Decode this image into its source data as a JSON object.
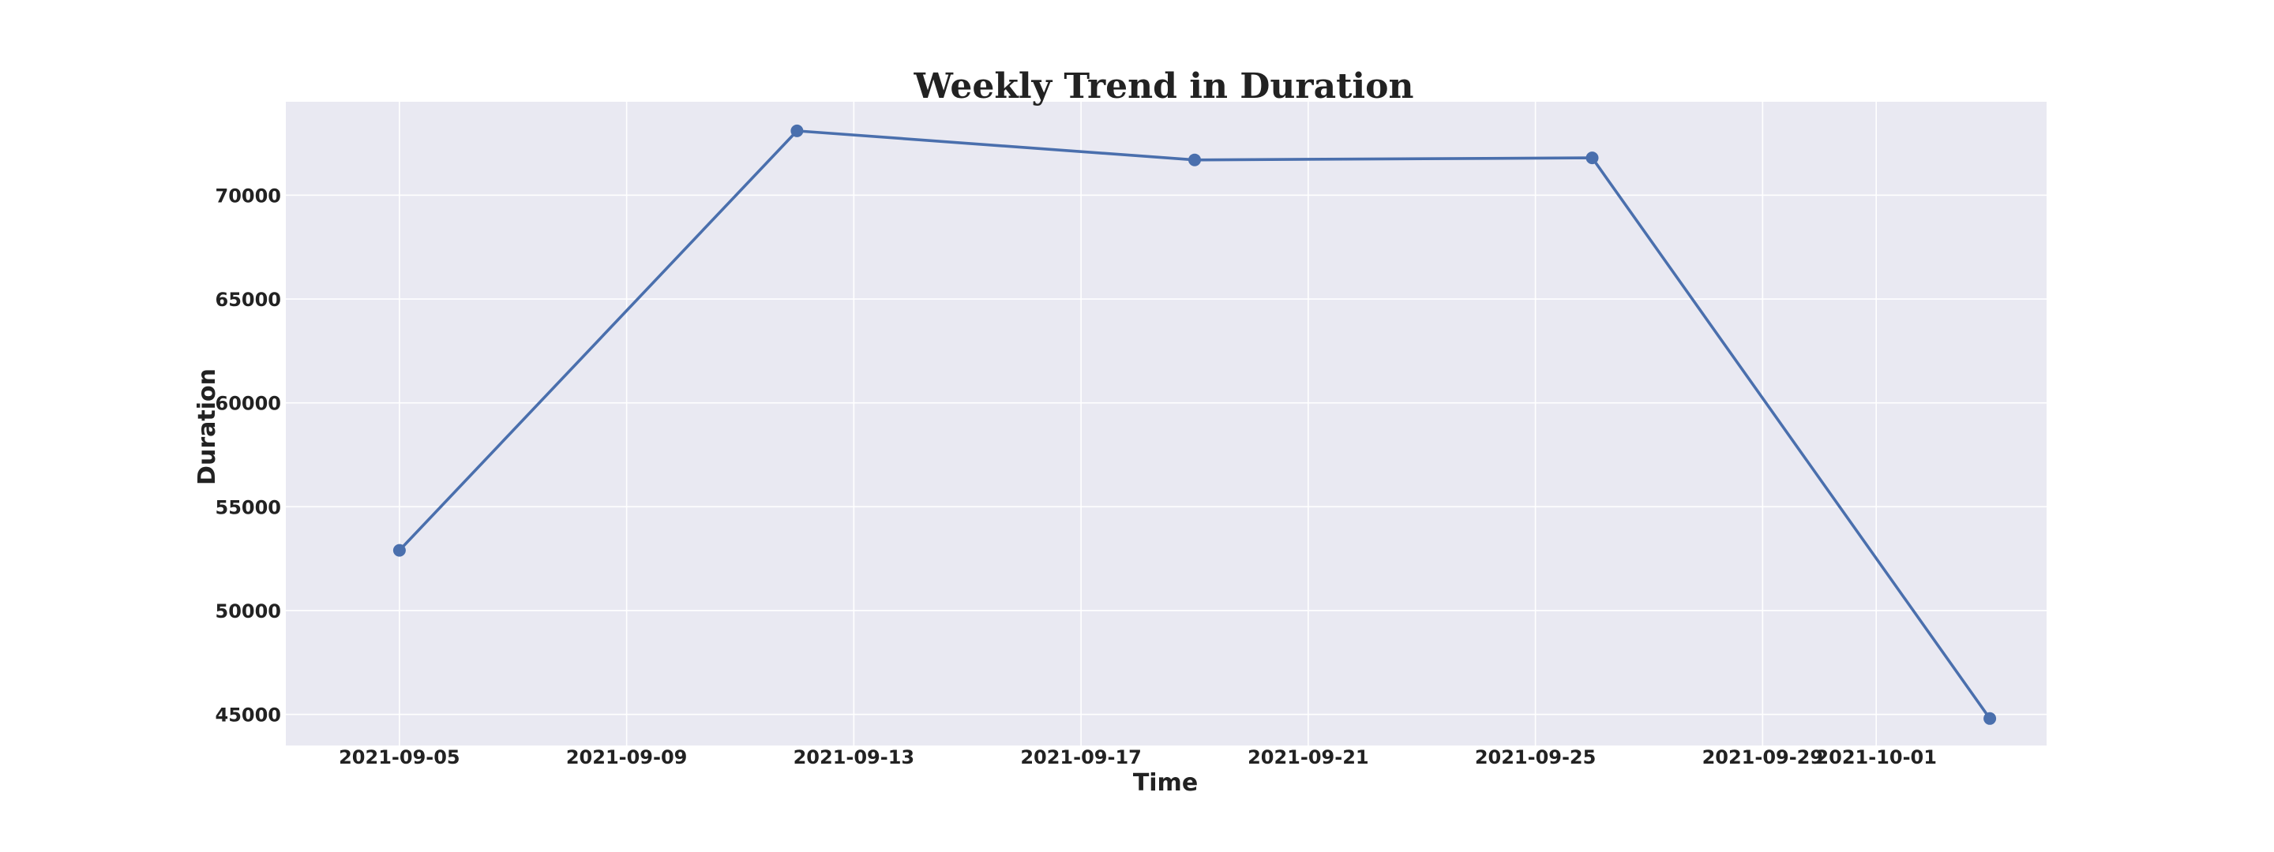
{
  "chart_data": {
    "type": "line",
    "title": "Weekly Trend in Duration",
    "xlabel": "Time",
    "ylabel": "Duration",
    "x": [
      "2021-09-05",
      "2021-09-12",
      "2021-09-19",
      "2021-09-26",
      "2021-10-03"
    ],
    "series": [
      {
        "name": "",
        "values": [
          52900,
          73100,
          71700,
          71800,
          44800
        ]
      }
    ],
    "x_ticks": [
      "2021-09-05",
      "2021-09-09",
      "2021-09-13",
      "2021-09-17",
      "2021-09-21",
      "2021-09-25",
      "2021-09-29",
      "2021-10-01"
    ],
    "y_ticks": [
      45000,
      50000,
      55000,
      60000,
      65000,
      70000
    ],
    "xlim": [
      "2021-09-03",
      "2021-10-04"
    ],
    "ylim": [
      43500,
      74500
    ],
    "grid": true,
    "legend": false,
    "colors": {
      "plot_background": "#e9e9f2",
      "grid": "#ffffff",
      "line": "#4a6fad",
      "marker": "#4a6fad"
    }
  }
}
